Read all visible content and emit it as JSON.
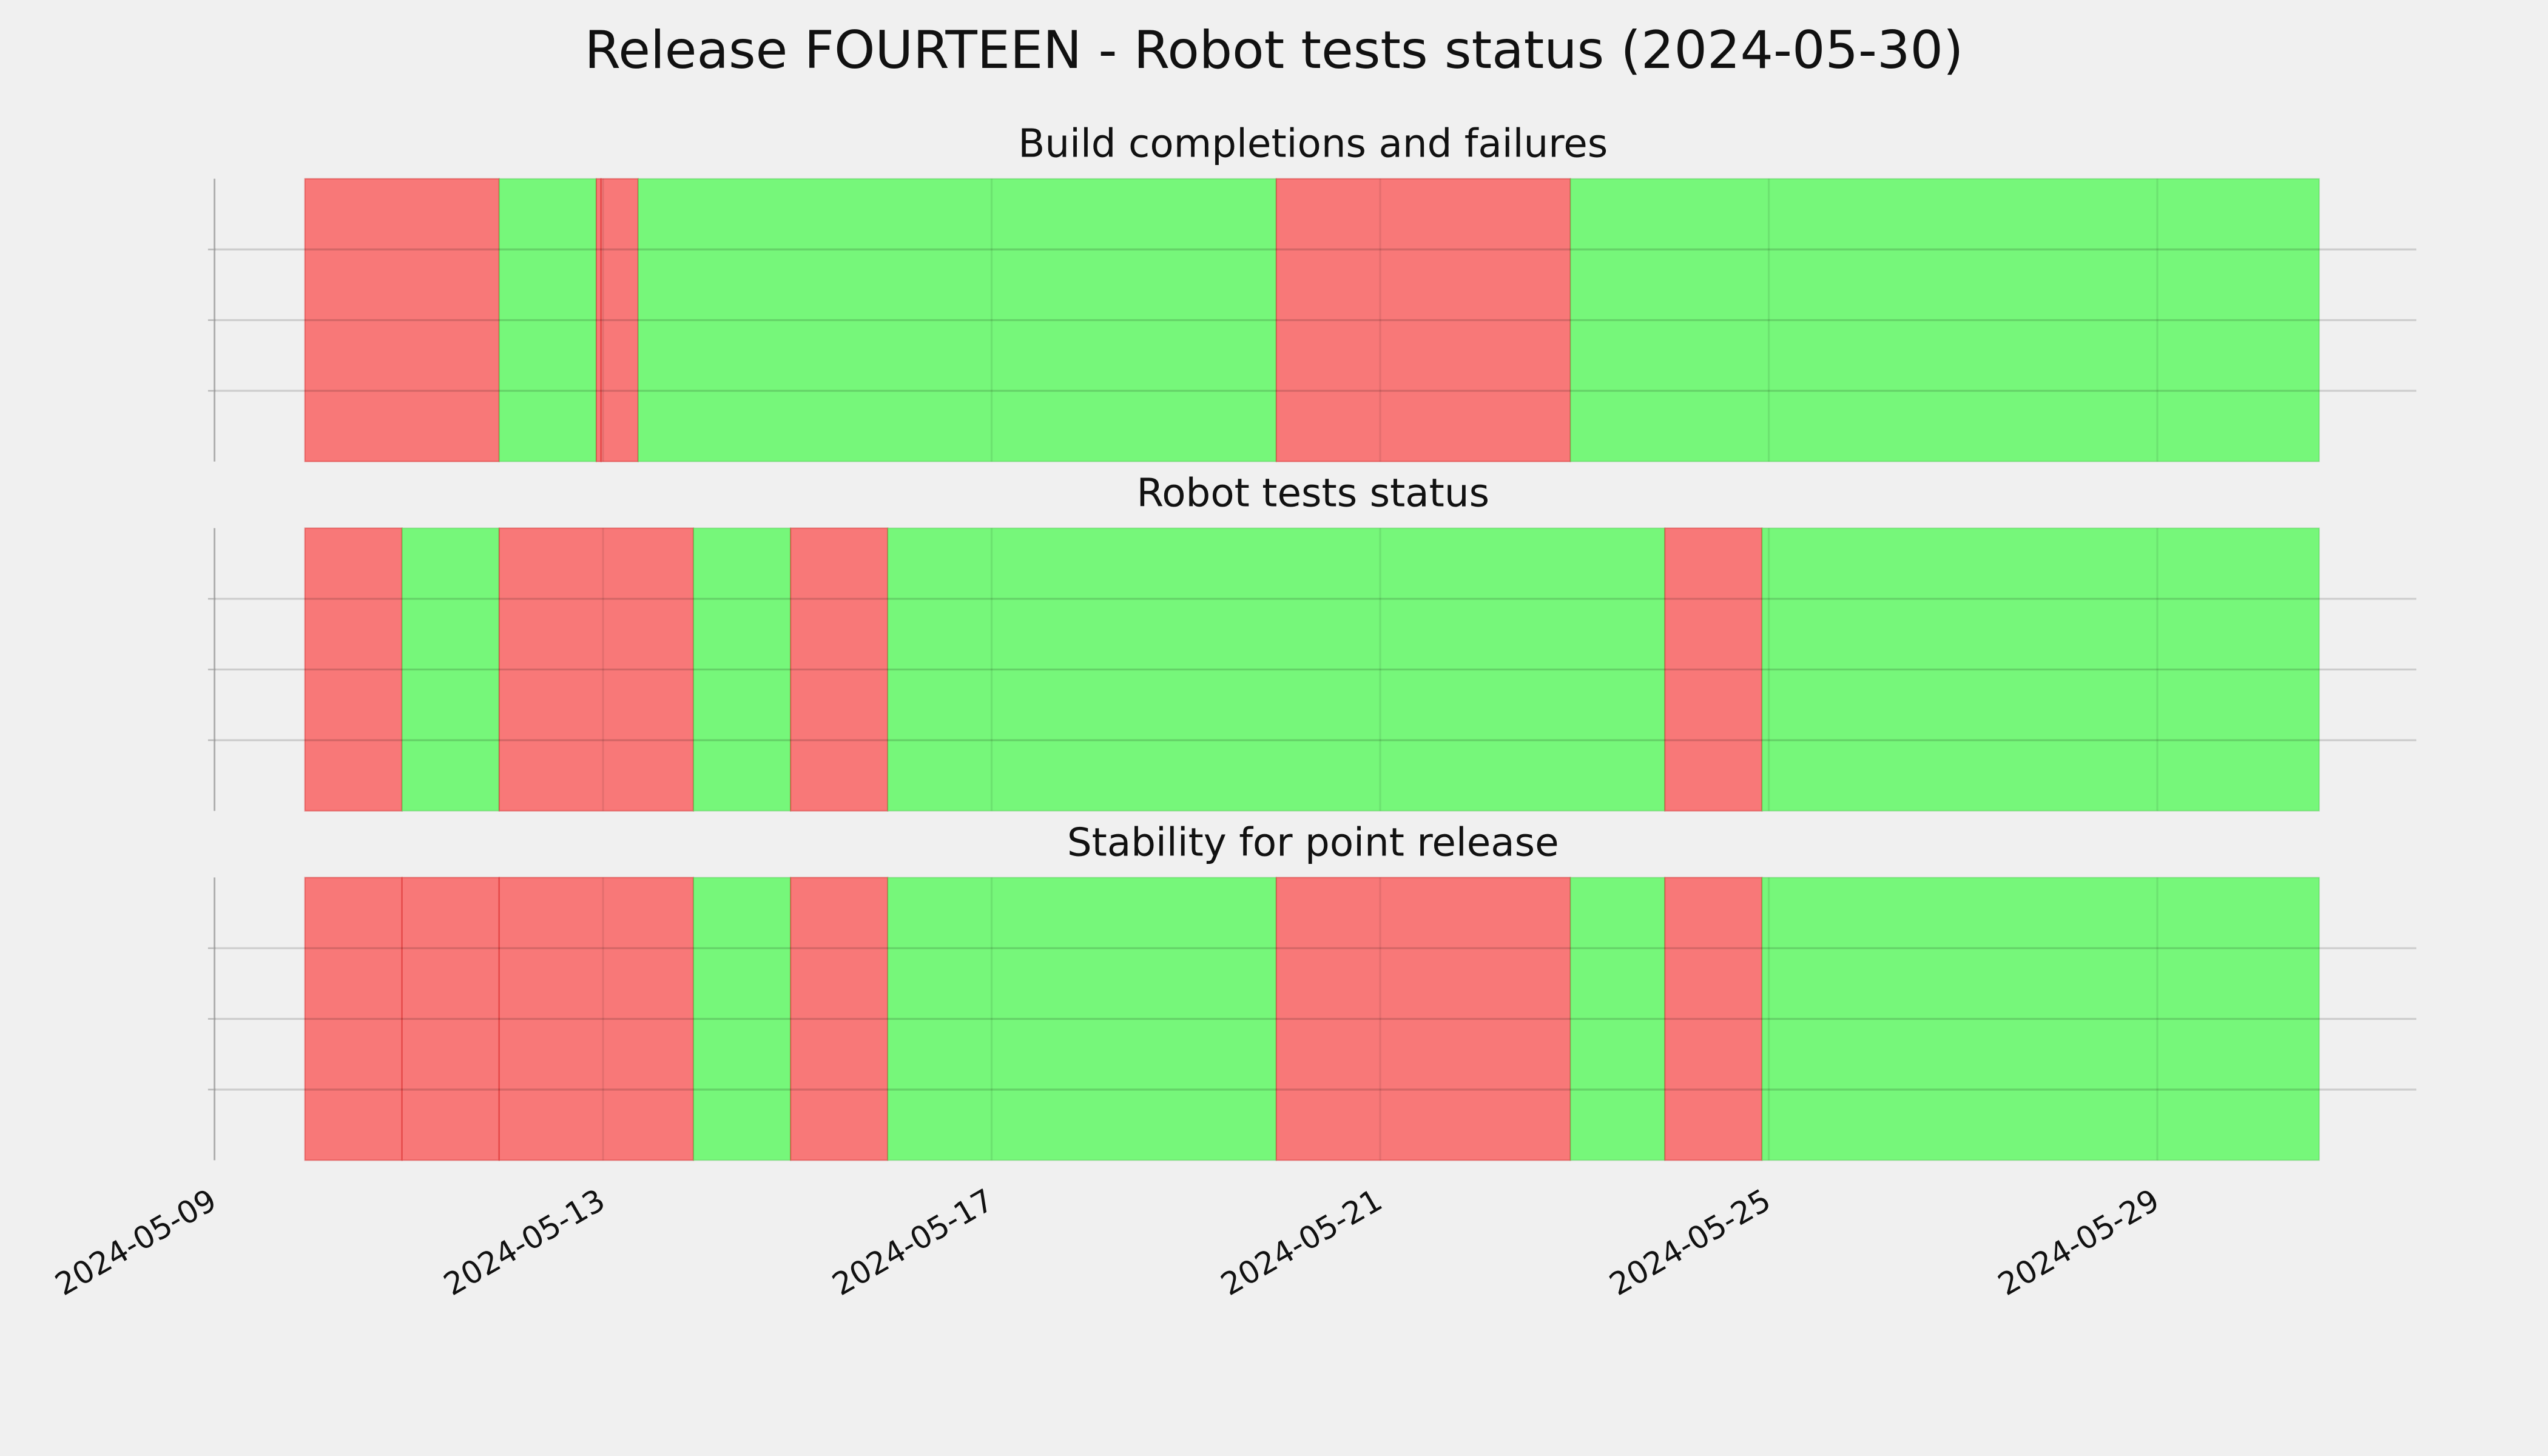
{
  "chart_data": {
    "type": "timeline",
    "title": "Release FOURTEEN - Robot tests status (2024-05-30)",
    "xlim": [
      "2024-05-09 00:00",
      "2024-05-31 16:00"
    ],
    "xticks": [
      "2024-05-09",
      "2024-05-13",
      "2024-05-17",
      "2024-05-21",
      "2024-05-25",
      "2024-05-29"
    ],
    "ylim": [
      0,
      1
    ],
    "yticks": [
      0.25,
      0.5,
      0.75
    ],
    "grid": true,
    "panels": [
      {
        "title": "Build completions and failures",
        "x": [
          "2024-05-09 22:20",
          "2024-05-11 22:20",
          "2024-05-12 22:20",
          "2024-05-12 23:30",
          "2024-05-13 08:40",
          "2024-05-19 22:20",
          "2024-05-22 23:00",
          "2024-05-30 16:00"
        ],
        "colors": [
          "#f87878",
          "#76f77a",
          "#f87878",
          "#f87878",
          "#76f77a",
          "#f87878",
          "#76f77a"
        ]
      },
      {
        "title": "Robot tests status",
        "x": [
          "2024-05-09 22:20",
          "2024-05-10 22:20",
          "2024-05-11 22:20",
          "2024-05-13 22:20",
          "2024-05-14 22:20",
          "2024-05-15 22:20",
          "2024-05-23 22:20",
          "2024-05-24 22:20",
          "2024-05-30 16:00"
        ],
        "colors": [
          "#f87878",
          "#76f77a",
          "#f87878",
          "#76f77a",
          "#f87878",
          "#76f77a",
          "#f87878",
          "#76f77a"
        ]
      },
      {
        "title": "Stability for point release",
        "x": [
          "2024-05-09 22:20",
          "2024-05-10 22:20",
          "2024-05-11 22:20",
          "2024-05-13 22:20",
          "2024-05-14 22:20",
          "2024-05-15 22:20",
          "2024-05-19 22:20",
          "2024-05-22 23:00",
          "2024-05-23 22:20",
          "2024-05-24 22:20",
          "2024-05-30 16:00"
        ],
        "colors": [
          "#f87878",
          "#f87878",
          "#f87878",
          "#76f77a",
          "#f87878",
          "#76f77a",
          "#f87878",
          "#76f77a",
          "#f87878",
          "#76f77a"
        ]
      }
    ]
  }
}
